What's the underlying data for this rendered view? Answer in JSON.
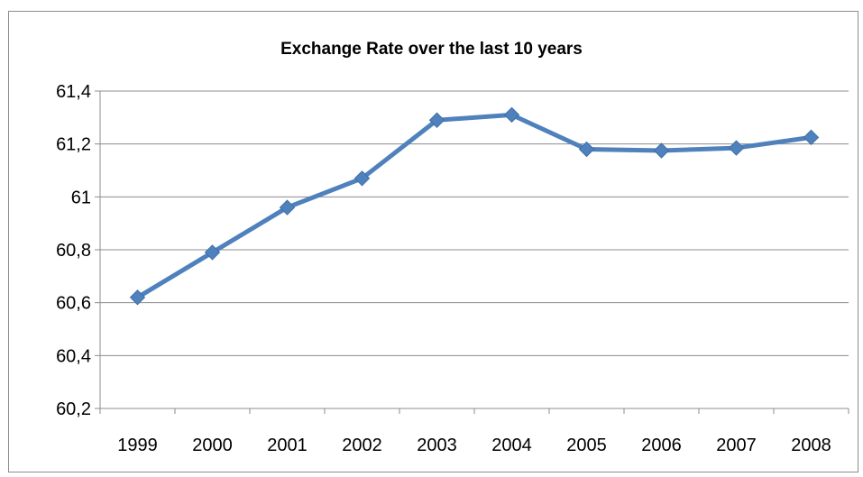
{
  "chart_data": {
    "type": "line",
    "title": "Exchange Rate over the last 10 years",
    "xlabel": "",
    "ylabel": "",
    "categories": [
      "1999",
      "2000",
      "2001",
      "2002",
      "2003",
      "2004",
      "2005",
      "2006",
      "2007",
      "2008"
    ],
    "series": [
      {
        "values": [
          60.62,
          60.79,
          60.96,
          61.07,
          61.29,
          61.31,
          61.18,
          61.175,
          61.185,
          61.225
        ],
        "color": "#4f81bd",
        "marker": "diamond"
      }
    ],
    "ylim": [
      60.2,
      61.4
    ],
    "yticks": [
      "60,2",
      "60,4",
      "60,6",
      "60,8",
      "61",
      "61,2",
      "61,4"
    ],
    "grid": true,
    "legend": "none"
  }
}
